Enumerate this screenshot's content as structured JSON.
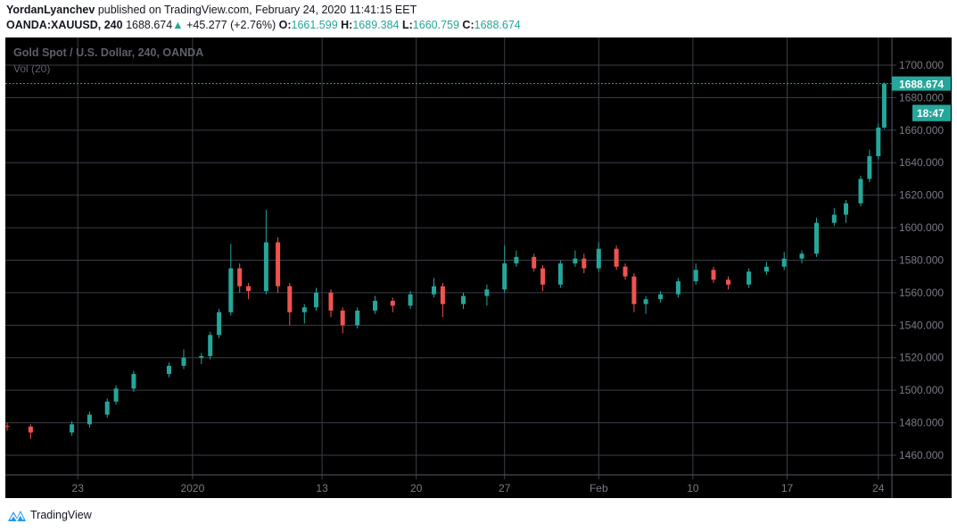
{
  "header": {
    "author": "YordanLyanchev",
    "published_text": "published on TradingView.com, February 24, 2020 11:41:15 EET",
    "symbol": "OANDA:XAUUSD, 240",
    "last": "1688.674",
    "change": "+45.277 (+2.76%)",
    "o_label": "O:",
    "o": "1661.599",
    "h_label": "H:",
    "h": "1689.384",
    "l_label": "L:",
    "l": "1660.759",
    "c_label": "C:",
    "c": "1688.674"
  },
  "chart_legend": {
    "title": "Gold Spot / U.S. Dollar, 240, OANDA",
    "volume": "Vol (20)"
  },
  "price_tag": {
    "price": "1688.674",
    "countdown": "18:47"
  },
  "footer": {
    "brand": "TradingView"
  },
  "colors": {
    "up": "#26a69a",
    "down": "#ef5350",
    "background": "#000000",
    "grid": "#3a3e48",
    "axis_text": "#787b86",
    "brand_blue": "#2196f3"
  },
  "chart_data": {
    "type": "candlestick",
    "title": "Gold Spot / U.S. Dollar, 240, OANDA",
    "ylim": [
      1448,
      1717
    ],
    "y_ticks": [
      "1460.000",
      "1480.000",
      "1500.000",
      "1520.000",
      "1540.000",
      "1560.000",
      "1580.000",
      "1600.000",
      "1620.000",
      "1640.000",
      "1660.000",
      "1680.000",
      "1700.000"
    ],
    "x_ticks": [
      {
        "label": "23",
        "bar": 24
      },
      {
        "label": "2020",
        "bar": 63
      },
      {
        "label": "13",
        "bar": 107
      },
      {
        "label": "20",
        "bar": 139
      },
      {
        "label": "27",
        "bar": 169
      },
      {
        "label": "Feb",
        "bar": 201
      },
      {
        "label": "10",
        "bar": 233
      },
      {
        "label": "17",
        "bar": 265
      },
      {
        "label": "24",
        "bar": 296
      }
    ],
    "grid": true,
    "candles_columns": [
      "bar",
      "open",
      "high",
      "low",
      "close"
    ],
    "candles": [
      [
        0,
        1478,
        1480,
        1475,
        1477.6
      ],
      [
        8,
        1477.6,
        1479,
        1470,
        1474
      ],
      [
        22,
        1474,
        1481,
        1472,
        1479
      ],
      [
        28,
        1479,
        1487,
        1477,
        1485
      ],
      [
        34,
        1485,
        1495,
        1483,
        1493
      ],
      [
        37,
        1493,
        1503,
        1491,
        1501
      ],
      [
        43,
        1501,
        1512,
        1499,
        1510
      ],
      [
        55,
        1510,
        1517,
        1508,
        1515
      ],
      [
        60,
        1515,
        1525,
        1513,
        1520
      ],
      [
        66,
        1520,
        1523,
        1516,
        1521
      ],
      [
        69,
        1521,
        1536,
        1519,
        1534
      ],
      [
        72,
        1534,
        1550,
        1532,
        1548
      ],
      [
        76,
        1548,
        1590,
        1546,
        1575
      ],
      [
        79,
        1575,
        1578,
        1560,
        1564
      ],
      [
        82,
        1564,
        1566,
        1556,
        1561
      ],
      [
        88,
        1561,
        1611,
        1559,
        1591
      ],
      [
        92,
        1591,
        1594,
        1560,
        1564
      ],
      [
        96,
        1564,
        1566,
        1540,
        1548
      ],
      [
        101,
        1548,
        1553,
        1541,
        1551
      ],
      [
        105,
        1551,
        1563,
        1549,
        1560
      ],
      [
        110,
        1560,
        1562,
        1545,
        1549
      ],
      [
        114,
        1549,
        1551,
        1535,
        1540
      ],
      [
        119,
        1540,
        1551,
        1538,
        1549
      ],
      [
        125,
        1549,
        1558,
        1547,
        1555
      ],
      [
        131,
        1555,
        1557,
        1548,
        1552
      ],
      [
        137,
        1552,
        1561,
        1550,
        1559
      ],
      [
        145,
        1559,
        1569,
        1557,
        1564
      ],
      [
        148,
        1564,
        1566,
        1545,
        1553
      ],
      [
        155,
        1553,
        1560,
        1550,
        1558
      ],
      [
        163,
        1558,
        1565,
        1552,
        1562
      ],
      [
        169,
        1562,
        1589,
        1560,
        1578
      ],
      [
        173,
        1578,
        1586,
        1576,
        1582
      ],
      [
        179,
        1582,
        1584,
        1573,
        1575
      ],
      [
        182,
        1575,
        1577,
        1561,
        1565
      ],
      [
        188,
        1565,
        1580,
        1563,
        1578
      ],
      [
        193,
        1578,
        1586,
        1576,
        1581
      ],
      [
        196,
        1581,
        1584,
        1572,
        1575
      ],
      [
        201,
        1575,
        1591,
        1573,
        1587
      ],
      [
        207,
        1587,
        1589,
        1574,
        1576
      ],
      [
        210,
        1576,
        1578,
        1568,
        1570
      ],
      [
        213,
        1570,
        1572,
        1548,
        1553
      ],
      [
        217,
        1553,
        1558,
        1547,
        1556
      ],
      [
        222,
        1556,
        1561,
        1554,
        1559
      ],
      [
        228,
        1559,
        1569,
        1557,
        1567
      ],
      [
        234,
        1567,
        1578,
        1565,
        1574
      ],
      [
        240,
        1574,
        1576,
        1566,
        1568
      ],
      [
        245,
        1568,
        1570,
        1562,
        1565
      ],
      [
        252,
        1565,
        1575,
        1563,
        1573
      ],
      [
        258,
        1573,
        1579,
        1571,
        1576
      ],
      [
        264,
        1576,
        1585,
        1574,
        1581
      ],
      [
        270,
        1581,
        1586,
        1578,
        1584
      ],
      [
        275,
        1584,
        1606,
        1582,
        1603
      ],
      [
        281,
        1603,
        1612,
        1601,
        1608
      ],
      [
        285,
        1608,
        1617,
        1603,
        1615
      ],
      [
        290,
        1615,
        1632,
        1613,
        1630
      ],
      [
        293,
        1630,
        1648,
        1628,
        1644
      ],
      [
        296,
        1644,
        1664,
        1642,
        1661.6
      ],
      [
        298,
        1661.599,
        1689.384,
        1660.759,
        1688.674
      ]
    ],
    "last_price": 1688.674
  }
}
